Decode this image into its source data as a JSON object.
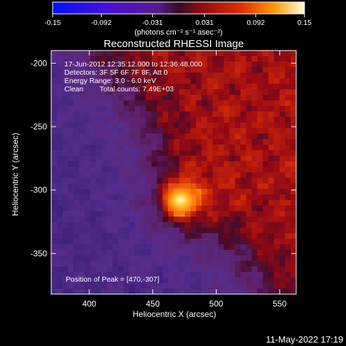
{
  "colorbar": {
    "ticks": [
      "-0.15",
      "-0.092",
      "-0.031",
      "0.031",
      "0.092",
      "0.15"
    ],
    "tick_values": [
      -0.15,
      -0.092,
      -0.031,
      0.031,
      0.092,
      0.15
    ],
    "range": [
      -0.15,
      0.15
    ],
    "units": "(photons cm⁻² s⁻¹ asec⁻²)"
  },
  "chart_data": {
    "type": "heatmap",
    "title": "Reconstructed RHESSI Image",
    "xlabel": "Heliocentric X (arcsec)",
    "ylabel": "Heliocentric Y (arcsec)",
    "xlim": [
      370,
      563
    ],
    "ylim": [
      -382,
      -190
    ],
    "x_ticks": [
      400,
      450,
      500,
      550
    ],
    "y_ticks": [
      -200,
      -250,
      -300,
      -350
    ],
    "peak": [
      470,
      -307
    ],
    "annotations": [
      "17-Jun-2012 12:35:12.000 to 12:36:48.000",
      "Detectors: 3F 5F 6F 7F 8F, Att 0",
      "Energy Range: 3.0 - 6.0 keV",
      "Clean",
      "Total counts: 7.49E+03"
    ],
    "peak_label": "Position of Peak = [470,-307]"
  },
  "footer": {
    "timestamp": "11-May-2022 17:19"
  }
}
